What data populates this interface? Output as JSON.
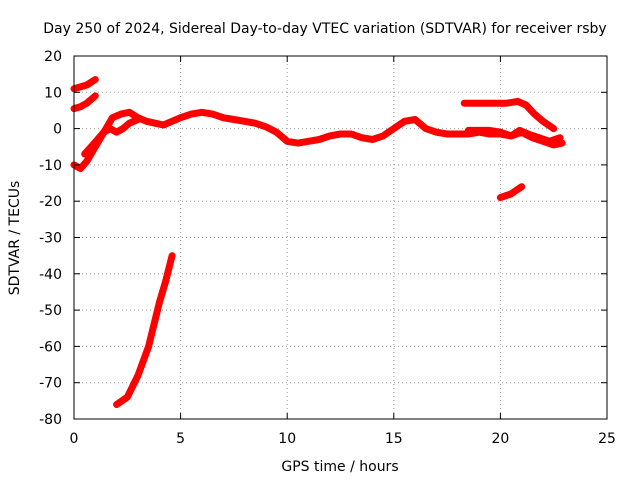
{
  "chart_data": {
    "type": "scatter",
    "title": "Day 250 of 2024, Sidereal Day-to-day VTEC variation (SDTVAR) for receiver rsby",
    "xlabel": "GPS time / hours",
    "ylabel": "SDTVAR / TECUs",
    "xlim": [
      0,
      25
    ],
    "ylim": [
      -80,
      20
    ],
    "xticks": [
      0,
      5,
      10,
      15,
      20,
      25
    ],
    "yticks": [
      20,
      10,
      0,
      -10,
      -20,
      -30,
      -40,
      -50,
      -60,
      -70,
      -80
    ],
    "grid": true,
    "color": "#ff0000",
    "series": [
      {
        "name": "main-trace",
        "points": [
          [
            0.0,
            -10
          ],
          [
            0.3,
            -11
          ],
          [
            0.6,
            -9
          ],
          [
            0.9,
            -6
          ],
          [
            1.2,
            -3
          ],
          [
            1.5,
            0
          ],
          [
            1.8,
            3
          ],
          [
            2.2,
            4
          ],
          [
            2.6,
            4.5
          ],
          [
            3.0,
            3
          ],
          [
            3.4,
            2
          ],
          [
            3.8,
            1.5
          ],
          [
            4.2,
            1
          ],
          [
            4.6,
            2
          ],
          [
            5.0,
            3
          ],
          [
            5.5,
            4
          ],
          [
            6.0,
            4.5
          ],
          [
            6.5,
            4
          ],
          [
            7.0,
            3
          ],
          [
            7.5,
            2.5
          ],
          [
            8.0,
            2
          ],
          [
            8.5,
            1.5
          ],
          [
            9.0,
            0.5
          ],
          [
            9.5,
            -1
          ],
          [
            10.0,
            -3.5
          ],
          [
            10.5,
            -4
          ],
          [
            11.0,
            -3.5
          ],
          [
            11.5,
            -3
          ],
          [
            12.0,
            -2
          ],
          [
            12.5,
            -1.5
          ],
          [
            13.0,
            -1.5
          ],
          [
            13.5,
            -2.5
          ],
          [
            14.0,
            -3
          ],
          [
            14.5,
            -2
          ],
          [
            15.0,
            0
          ],
          [
            15.5,
            2
          ],
          [
            16.0,
            2.5
          ],
          [
            16.5,
            0
          ],
          [
            17.0,
            -1
          ],
          [
            17.5,
            -1.5
          ],
          [
            18.0,
            -1.5
          ],
          [
            18.5,
            -1.5
          ],
          [
            19.0,
            -1
          ],
          [
            19.5,
            -1.5
          ],
          [
            20.0,
            -1.5
          ],
          [
            20.5,
            -2
          ],
          [
            21.0,
            -1
          ],
          [
            21.5,
            -2.5
          ],
          [
            22.0,
            -3.5
          ],
          [
            22.5,
            -4.5
          ],
          [
            22.9,
            -4
          ]
        ]
      },
      {
        "name": "inner-trace",
        "points": [
          [
            0.5,
            -7
          ],
          [
            0.8,
            -5
          ],
          [
            1.1,
            -3
          ],
          [
            1.4,
            -1
          ],
          [
            1.7,
            0
          ],
          [
            2.0,
            -1
          ],
          [
            2.3,
            0
          ],
          [
            2.6,
            1.5
          ],
          [
            3.0,
            2.5
          ]
        ]
      },
      {
        "name": "early-high-a",
        "points": [
          [
            0.0,
            11
          ],
          [
            0.3,
            11.5
          ],
          [
            0.6,
            12
          ],
          [
            1.0,
            13.5
          ]
        ]
      },
      {
        "name": "early-high-b",
        "points": [
          [
            0.0,
            5.5
          ],
          [
            0.3,
            6
          ],
          [
            0.6,
            7
          ],
          [
            1.0,
            9
          ]
        ]
      },
      {
        "name": "deep-dip",
        "points": [
          [
            2.0,
            -76
          ],
          [
            2.5,
            -74
          ],
          [
            3.0,
            -68
          ],
          [
            3.5,
            -60
          ],
          [
            4.0,
            -48
          ],
          [
            4.3,
            -42
          ],
          [
            4.6,
            -35
          ]
        ]
      },
      {
        "name": "late-high",
        "points": [
          [
            18.3,
            7
          ],
          [
            18.8,
            7
          ],
          [
            19.3,
            7
          ],
          [
            19.8,
            7
          ],
          [
            20.3,
            7
          ],
          [
            20.8,
            7.5
          ],
          [
            21.2,
            6.5
          ],
          [
            21.6,
            4
          ],
          [
            22.0,
            2
          ],
          [
            22.5,
            0
          ]
        ]
      },
      {
        "name": "late-secondary",
        "points": [
          [
            18.5,
            -0.5
          ],
          [
            19.0,
            -0.5
          ],
          [
            19.5,
            -0.5
          ],
          [
            20.0,
            -1
          ],
          [
            20.5,
            -2
          ],
          [
            20.9,
            -0.5
          ],
          [
            21.3,
            -1.5
          ],
          [
            21.8,
            -2.5
          ],
          [
            22.3,
            -3.5
          ],
          [
            22.8,
            -2.5
          ]
        ]
      },
      {
        "name": "late-low",
        "points": [
          [
            20.0,
            -19
          ],
          [
            20.5,
            -18
          ],
          [
            21.0,
            -16
          ]
        ]
      }
    ]
  }
}
